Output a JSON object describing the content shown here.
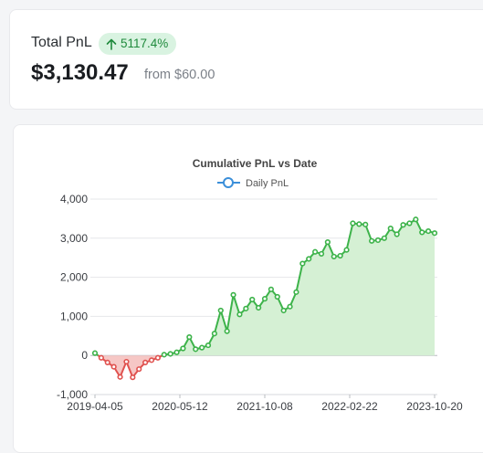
{
  "summary": {
    "label": "Total PnL",
    "change_percent": "5117.4%",
    "change_direction": "up",
    "value": "$3,130.47",
    "from_text": "from $60.00",
    "positive_color": "#1f8a3c",
    "badge_bg": "#d9f3e1"
  },
  "chart_data": {
    "type": "area",
    "title": "Cumulative PnL vs Date",
    "series": [
      {
        "name": "Daily PnL",
        "color_positive": "#3db34a",
        "color_negative": "#e0524f",
        "fill_positive": "#d5f0d4",
        "fill_negative": "#f6c7c5",
        "values": [
          60,
          -60,
          -180,
          -290,
          -550,
          -160,
          -560,
          -350,
          -180,
          -120,
          -60,
          20,
          40,
          80,
          180,
          470,
          160,
          200,
          260,
          560,
          1150,
          620,
          1550,
          1050,
          1200,
          1430,
          1220,
          1450,
          1690,
          1500,
          1150,
          1250,
          1620,
          2350,
          2470,
          2650,
          2600,
          2900,
          2530,
          2550,
          2700,
          3380,
          3360,
          3350,
          2930,
          2950,
          3000,
          3250,
          3100,
          3340,
          3380,
          3480,
          3150,
          3180,
          3130
        ]
      }
    ],
    "x_tick_labels": [
      "2019-04-05",
      "2020-05-12",
      "2021-10-08",
      "2022-02-22",
      "2023-10-20"
    ],
    "y_ticks": [
      "4,000",
      "3,000",
      "2,000",
      "1,000",
      "0",
      "-1,000"
    ],
    "ylim": [
      -1000,
      4000
    ],
    "grid": true,
    "legend_position": "top-center"
  }
}
